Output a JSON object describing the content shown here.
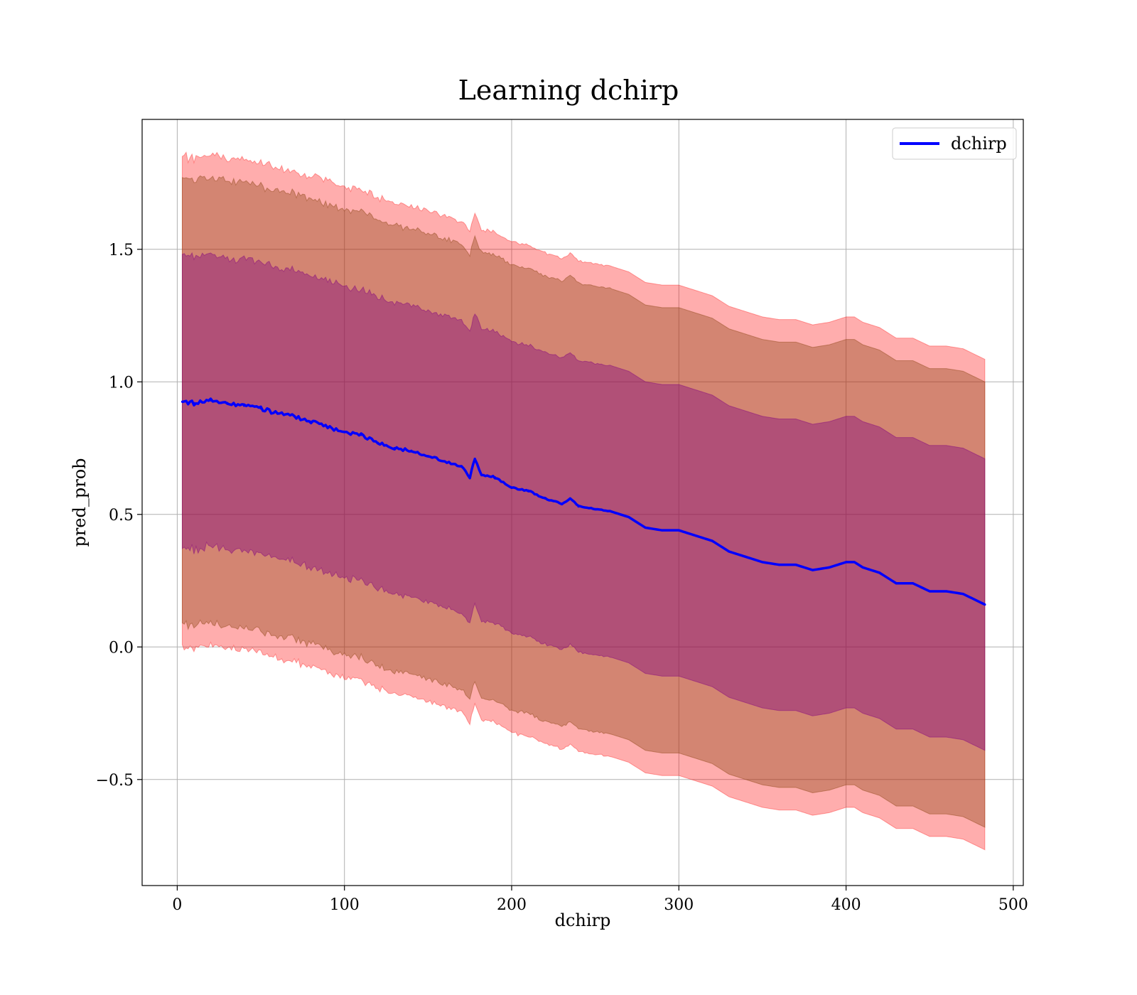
{
  "chart_data": {
    "type": "line",
    "title": "Learning dchirp",
    "xlabel": "dchirp",
    "ylabel": "pred_prob",
    "xlim": [
      -21,
      506
    ],
    "ylim": [
      -0.9,
      1.99
    ],
    "xticks": [
      0,
      100,
      200,
      300,
      400,
      500
    ],
    "xtick_labels": [
      "0",
      "100",
      "200",
      "300",
      "400",
      "500"
    ],
    "yticks": [
      -0.5,
      0.0,
      0.5,
      1.0,
      1.5
    ],
    "ytick_labels": [
      "−0.5",
      "0.0",
      "0.5",
      "1.0",
      "1.5"
    ],
    "grid": true,
    "legend_position": "top-right",
    "colors": {
      "line": "#0000ff",
      "band_outer": "#ff0000",
      "band_middle": "#8b4513",
      "band_inner": "#800080"
    },
    "band_opacity": {
      "outer": 0.32,
      "middle": 0.38,
      "inner": 0.4
    },
    "x": [
      3,
      10,
      20,
      30,
      40,
      50,
      60,
      70,
      80,
      90,
      100,
      110,
      120,
      130,
      140,
      150,
      160,
      170,
      175,
      178,
      182,
      190,
      200,
      210,
      220,
      230,
      235,
      240,
      250,
      260,
      270,
      280,
      290,
      300,
      310,
      320,
      330,
      340,
      350,
      360,
      370,
      380,
      390,
      400,
      405,
      410,
      420,
      430,
      440,
      450,
      460,
      470,
      483
    ],
    "series": [
      {
        "name": "dchirp",
        "values": [
          0.925,
          0.92,
          0.93,
          0.92,
          0.91,
          0.9,
          0.88,
          0.87,
          0.85,
          0.83,
          0.81,
          0.8,
          0.77,
          0.75,
          0.74,
          0.72,
          0.7,
          0.68,
          0.64,
          0.71,
          0.65,
          0.64,
          0.6,
          0.59,
          0.56,
          0.54,
          0.56,
          0.53,
          0.52,
          0.51,
          0.49,
          0.45,
          0.44,
          0.44,
          0.42,
          0.4,
          0.36,
          0.34,
          0.32,
          0.31,
          0.31,
          0.29,
          0.3,
          0.32,
          0.32,
          0.3,
          0.28,
          0.24,
          0.24,
          0.21,
          0.21,
          0.2,
          0.16
        ],
        "band_inner": [
          0.55,
          0.55,
          0.55,
          0.55,
          0.55,
          0.55,
          0.55,
          0.55,
          0.55,
          0.55,
          0.55,
          0.55,
          0.55,
          0.55,
          0.55,
          0.55,
          0.55,
          0.55,
          0.55,
          0.55,
          0.55,
          0.55,
          0.55,
          0.55,
          0.55,
          0.55,
          0.55,
          0.55,
          0.55,
          0.55,
          0.55,
          0.55,
          0.55,
          0.55,
          0.55,
          0.55,
          0.55,
          0.55,
          0.55,
          0.55,
          0.55,
          0.55,
          0.55,
          0.55,
          0.55,
          0.55,
          0.55,
          0.55,
          0.55,
          0.55,
          0.55,
          0.55,
          0.55
        ],
        "band_middle": [
          0.84,
          0.84,
          0.84,
          0.84,
          0.84,
          0.84,
          0.84,
          0.84,
          0.84,
          0.84,
          0.84,
          0.84,
          0.84,
          0.84,
          0.84,
          0.84,
          0.84,
          0.84,
          0.84,
          0.84,
          0.84,
          0.84,
          0.84,
          0.84,
          0.84,
          0.84,
          0.84,
          0.84,
          0.84,
          0.84,
          0.84,
          0.84,
          0.84,
          0.84,
          0.84,
          0.84,
          0.84,
          0.84,
          0.84,
          0.84,
          0.84,
          0.84,
          0.84,
          0.84,
          0.84,
          0.84,
          0.84,
          0.84,
          0.84,
          0.84,
          0.84,
          0.84,
          0.84
        ],
        "band_outer": [
          0.925,
          0.925,
          0.925,
          0.925,
          0.925,
          0.925,
          0.925,
          0.925,
          0.925,
          0.925,
          0.925,
          0.925,
          0.925,
          0.925,
          0.925,
          0.925,
          0.925,
          0.925,
          0.925,
          0.925,
          0.925,
          0.925,
          0.925,
          0.925,
          0.925,
          0.925,
          0.925,
          0.925,
          0.925,
          0.925,
          0.925,
          0.925,
          0.925,
          0.925,
          0.925,
          0.925,
          0.925,
          0.925,
          0.925,
          0.925,
          0.925,
          0.925,
          0.925,
          0.925,
          0.925,
          0.925,
          0.925,
          0.925,
          0.925,
          0.925,
          0.925,
          0.925,
          0.925
        ]
      }
    ]
  }
}
